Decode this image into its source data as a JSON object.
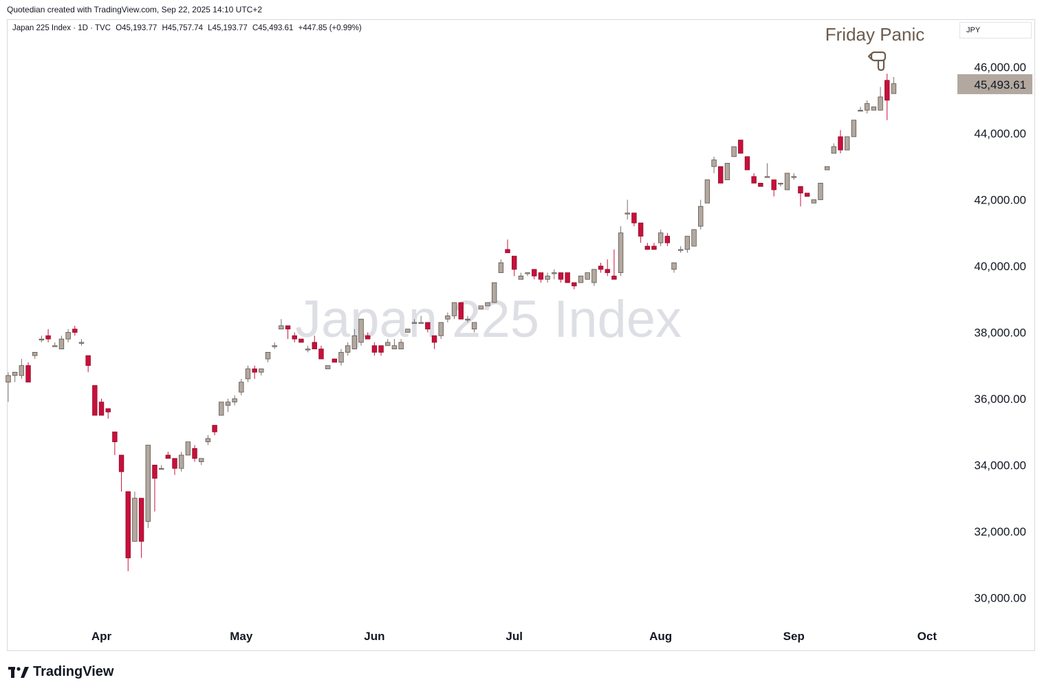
{
  "header": {
    "caption": "Quotedian created with TradingView.com, Sep 22, 2025 14:10 UTC+2"
  },
  "legend": {
    "title": "Japan 225 Index · 1D · TVC",
    "open": "O45,193.77",
    "high": "H45,757.74",
    "low": "L45,193.77",
    "close": "C45,493.61",
    "change": "+447.85 (+0.99%)"
  },
  "currency": "JPY",
  "watermark": "Japan 225 Index",
  "annotation": {
    "text": "Friday Panic",
    "icon": "pointing-down-hand-icon"
  },
  "footer": {
    "brand": "TradingView",
    "icon": "tradingview-logo-icon"
  },
  "colors": {
    "up": "#b2a89f",
    "down": "#c8103b",
    "annotation": "#6b5b4d",
    "price_label_bg": "#b2a89f"
  },
  "chart_data": {
    "type": "candlestick",
    "title": "Japan 225 Index",
    "ylim": [
      29200,
      47400
    ],
    "yticks": [
      30000,
      32000,
      34000,
      36000,
      38000,
      40000,
      42000,
      44000,
      46000
    ],
    "ytick_labels": [
      "30,000.00",
      "32,000.00",
      "34,000.00",
      "36,000.00",
      "38,000.00",
      "40,000.00",
      "42,000.00",
      "44,000.00",
      "46,000.00"
    ],
    "xticks": [
      {
        "label": "Apr",
        "index": 14
      },
      {
        "label": "May",
        "index": 35
      },
      {
        "label": "Jun",
        "index": 55
      },
      {
        "label": "Jul",
        "index": 76
      },
      {
        "label": "Aug",
        "index": 98
      },
      {
        "label": "Sep",
        "index": 118
      },
      {
        "label": "Oct",
        "index": 138
      }
    ],
    "last_price": 45493.61,
    "last_price_label": "45,493.61",
    "ohlc": [
      [
        36500,
        36800,
        35900,
        36700
      ],
      [
        36700,
        36800,
        36500,
        36800
      ],
      [
        36700,
        37200,
        36600,
        37000
      ],
      [
        37000,
        37100,
        36500,
        36500
      ],
      [
        37300,
        37400,
        37200,
        37400
      ],
      [
        37800,
        37900,
        37700,
        37800
      ],
      [
        37900,
        38100,
        37700,
        37800
      ],
      [
        37600,
        37700,
        37600,
        37600
      ],
      [
        37500,
        37900,
        37500,
        37800
      ],
      [
        37800,
        38100,
        37700,
        38000
      ],
      [
        38100,
        38200,
        37900,
        38000
      ],
      [
        37700,
        37800,
        37600,
        37700
      ],
      [
        37300,
        37300,
        36800,
        37000
      ],
      [
        36400,
        36400,
        35500,
        35500
      ],
      [
        35900,
        36000,
        35500,
        35500
      ],
      [
        35700,
        35700,
        35400,
        35600
      ],
      [
        35000,
        35000,
        34300,
        34700
      ],
      [
        34300,
        34300,
        33200,
        33800
      ],
      [
        33200,
        33200,
        30800,
        31200
      ],
      [
        31700,
        33200,
        31700,
        33000
      ],
      [
        33000,
        33000,
        31200,
        31700
      ],
      [
        32300,
        34600,
        32100,
        34600
      ],
      [
        34000,
        34000,
        32600,
        33600
      ],
      [
        33900,
        34000,
        33900,
        33900
      ],
      [
        34300,
        34400,
        34200,
        34200
      ],
      [
        34200,
        34200,
        33700,
        33900
      ],
      [
        33900,
        34400,
        33800,
        34300
      ],
      [
        34300,
        34700,
        34300,
        34700
      ],
      [
        34500,
        34600,
        34100,
        34200
      ],
      [
        34100,
        34200,
        34000,
        34200
      ],
      [
        34700,
        34900,
        34600,
        34800
      ],
      [
        35200,
        35200,
        34900,
        35000
      ],
      [
        35500,
        35900,
        35500,
        35900
      ],
      [
        35800,
        36000,
        35600,
        35900
      ],
      [
        35900,
        36100,
        35800,
        36000
      ],
      [
        36200,
        36600,
        36100,
        36500
      ],
      [
        36600,
        37000,
        36500,
        36900
      ],
      [
        36900,
        37000,
        36600,
        36800
      ],
      [
        36800,
        36900,
        36700,
        36900
      ],
      [
        37200,
        37400,
        37100,
        37400
      ],
      [
        37600,
        37700,
        37500,
        37600
      ],
      [
        38100,
        38400,
        38100,
        38200
      ],
      [
        38200,
        38200,
        37800,
        38100
      ],
      [
        37900,
        38000,
        37700,
        37800
      ],
      [
        37800,
        37800,
        37700,
        37700
      ],
      [
        37500,
        37600,
        37400,
        37500
      ],
      [
        37700,
        37900,
        37500,
        37500
      ],
      [
        37500,
        37600,
        37200,
        37200
      ],
      [
        36900,
        37000,
        36900,
        37000
      ],
      [
        37200,
        37200,
        37100,
        37100
      ],
      [
        37100,
        37500,
        37000,
        37400
      ],
      [
        37400,
        37700,
        37300,
        37600
      ],
      [
        37500,
        38100,
        37500,
        37900
      ],
      [
        37700,
        38400,
        37600,
        38400
      ],
      [
        37900,
        38000,
        37800,
        37800
      ],
      [
        37600,
        37700,
        37300,
        37400
      ],
      [
        37600,
        37600,
        37300,
        37400
      ],
      [
        37600,
        37800,
        37600,
        37700
      ],
      [
        37500,
        37800,
        37500,
        37600
      ],
      [
        37500,
        37800,
        37500,
        37700
      ],
      [
        38000,
        38100,
        38000,
        38100
      ],
      [
        38300,
        38400,
        38300,
        38300
      ],
      [
        38300,
        38500,
        38300,
        38300
      ],
      [
        38300,
        38300,
        38000,
        38100
      ],
      [
        37900,
        37900,
        37500,
        37700
      ],
      [
        37900,
        38300,
        37800,
        38300
      ],
      [
        38400,
        38600,
        38300,
        38500
      ],
      [
        38500,
        38900,
        38400,
        38900
      ],
      [
        38900,
        38900,
        38400,
        38400
      ],
      [
        38400,
        38500,
        38300,
        38400
      ],
      [
        38100,
        38300,
        38000,
        38300
      ],
      [
        38700,
        38800,
        38700,
        38800
      ],
      [
        38800,
        38900,
        38800,
        38900
      ],
      [
        38900,
        39500,
        38900,
        39500
      ],
      [
        39800,
        40200,
        39800,
        40100
      ],
      [
        40500,
        40800,
        40400,
        40400
      ],
      [
        40300,
        40300,
        39700,
        39900
      ],
      [
        39600,
        39800,
        39600,
        39700
      ],
      [
        39800,
        39800,
        39700,
        39800
      ],
      [
        39900,
        39900,
        39600,
        39700
      ],
      [
        39800,
        39800,
        39500,
        39600
      ],
      [
        39600,
        39800,
        39500,
        39700
      ],
      [
        39800,
        39900,
        39600,
        39800
      ],
      [
        39800,
        39800,
        39500,
        39600
      ],
      [
        39800,
        39800,
        39500,
        39500
      ],
      [
        39500,
        39500,
        39300,
        39400
      ],
      [
        39500,
        39700,
        39500,
        39700
      ],
      [
        39600,
        39800,
        39600,
        39800
      ],
      [
        39500,
        39900,
        39400,
        39900
      ],
      [
        40000,
        40100,
        39800,
        39900
      ],
      [
        39900,
        40200,
        39700,
        39800
      ],
      [
        39700,
        40500,
        39600,
        39600
      ],
      [
        39800,
        41200,
        39700,
        41000
      ],
      [
        41600,
        42000,
        41400,
        41600
      ],
      [
        41600,
        41600,
        41200,
        41300
      ],
      [
        41300,
        41300,
        40700,
        40900
      ],
      [
        40600,
        40700,
        40500,
        40500
      ],
      [
        40600,
        40700,
        40500,
        40500
      ],
      [
        40700,
        41100,
        40600,
        41000
      ],
      [
        40900,
        41000,
        40600,
        40700
      ],
      [
        39900,
        40100,
        39800,
        40100
      ],
      [
        40500,
        40600,
        40400,
        40500
      ],
      [
        40500,
        40900,
        40400,
        40900
      ],
      [
        40600,
        41100,
        40600,
        41100
      ],
      [
        41200,
        42000,
        41100,
        41800
      ],
      [
        41900,
        42600,
        41900,
        42600
      ],
      [
        43000,
        43300,
        42800,
        43200
      ],
      [
        43000,
        43000,
        42500,
        42500
      ],
      [
        42600,
        43100,
        42600,
        43100
      ],
      [
        43300,
        43600,
        43300,
        43600
      ],
      [
        43800,
        43800,
        43400,
        43400
      ],
      [
        43300,
        43300,
        42900,
        42900
      ],
      [
        42700,
        42800,
        42500,
        42500
      ],
      [
        42500,
        42500,
        42400,
        42400
      ],
      [
        42700,
        43100,
        42700,
        42700
      ],
      [
        42600,
        42600,
        42100,
        42300
      ],
      [
        42500,
        42500,
        42400,
        42500
      ],
      [
        42300,
        42800,
        42300,
        42800
      ],
      [
        42700,
        42800,
        42600,
        42700
      ],
      [
        42400,
        42400,
        41800,
        42200
      ],
      [
        42200,
        42200,
        42100,
        42100
      ],
      [
        41900,
        42000,
        41900,
        42000
      ],
      [
        42000,
        42500,
        42000,
        42500
      ],
      [
        42900,
        43000,
        42900,
        43000
      ],
      [
        43400,
        43700,
        43400,
        43600
      ],
      [
        43900,
        44100,
        43400,
        43500
      ],
      [
        43500,
        43900,
        43500,
        43900
      ],
      [
        43900,
        44400,
        43900,
        44400
      ],
      [
        44700,
        44800,
        44700,
        44700
      ],
      [
        44700,
        45000,
        44600,
        44900
      ],
      [
        44700,
        44800,
        44700,
        44800
      ],
      [
        44700,
        45400,
        44700,
        45100
      ],
      [
        45600,
        45800,
        44400,
        45000
      ],
      [
        45200,
        45700,
        45200,
        45500
      ]
    ]
  }
}
